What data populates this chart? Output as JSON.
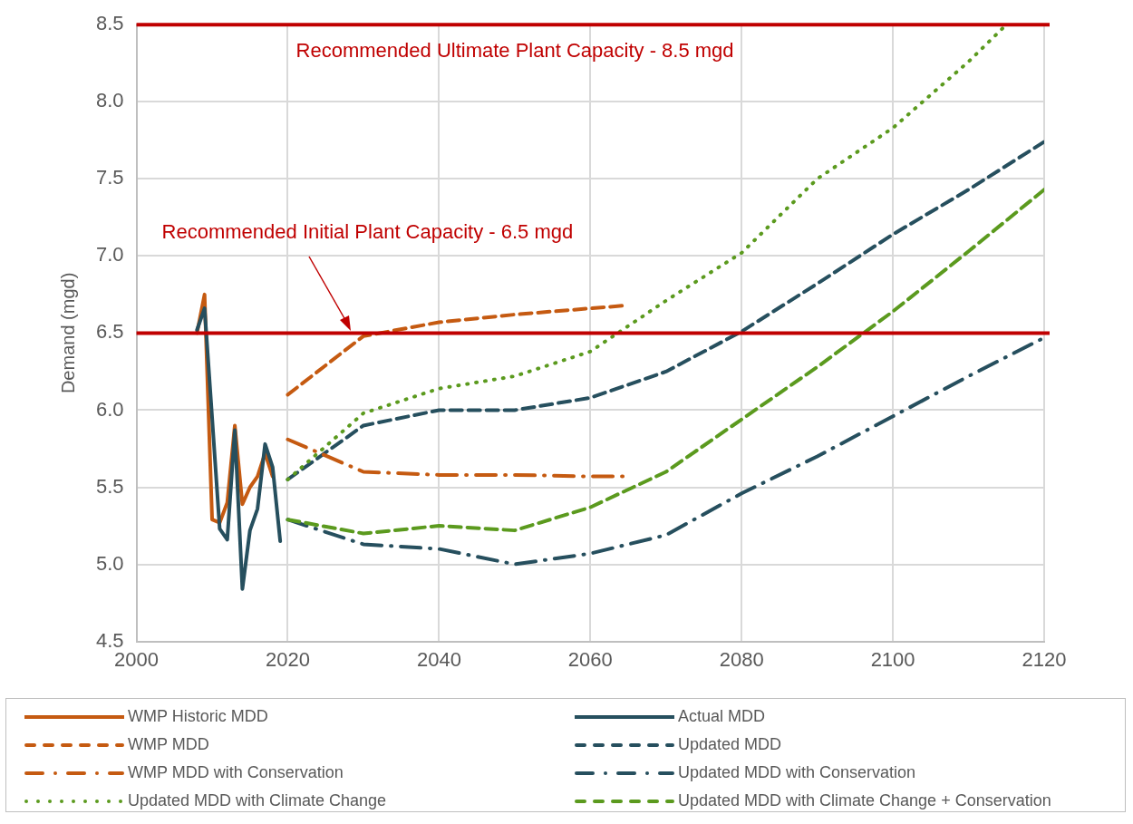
{
  "chart_data": {
    "type": "line",
    "ylabel": "Demand (mgd)",
    "xlim": [
      2000,
      2120
    ],
    "xticks": [
      2000,
      2020,
      2040,
      2060,
      2080,
      2100,
      2120
    ],
    "ylim": [
      4.5,
      8.5
    ],
    "yticks": [
      {
        "value": 4.5,
        "label": "4.5"
      },
      {
        "value": 5,
        "label": "5.0"
      },
      {
        "value": 5.5,
        "label": "5.5"
      },
      {
        "value": 6,
        "label": "6.0"
      },
      {
        "value": 6.5,
        "label": "6.5"
      },
      {
        "value": 7,
        "label": "7.0"
      },
      {
        "value": 7.5,
        "label": "7.5"
      },
      {
        "value": 8,
        "label": "8.0"
      },
      {
        "value": 8.5,
        "label": "8.5"
      }
    ],
    "grid": true,
    "legend": "bottom",
    "marker": "none",
    "ref_lines": [
      {
        "axis": "y",
        "value": 8.5,
        "label": "Recommended Ultimate Plant Capacity - 8.5 mgd",
        "color": "#c00000"
      },
      {
        "axis": "y",
        "value": 6.5,
        "label": "Recommended Initial Plant Capacity - 6.5 mgd",
        "color": "#c00000"
      }
    ],
    "series": [
      {
        "name": "WMP Historic MDD",
        "color": "#c55a11",
        "line_style": "solid",
        "x": [
          2008,
          2009,
          2010,
          2011,
          2012,
          2013,
          2014,
          2015,
          2016,
          2017,
          2018
        ],
        "values": [
          6.5,
          6.75,
          5.29,
          5.27,
          5.4,
          5.9,
          5.39,
          5.5,
          5.57,
          5.72,
          5.57
        ]
      },
      {
        "name": "Actual MDD",
        "color": "#264f5e",
        "line_style": "solid",
        "x": [
          2008,
          2009,
          2010,
          2011,
          2012,
          2013,
          2014,
          2015,
          2016,
          2017,
          2018,
          2019
        ],
        "values": [
          6.52,
          6.66,
          5.95,
          5.23,
          5.16,
          5.87,
          4.84,
          5.22,
          5.36,
          5.78,
          5.63,
          5.15
        ]
      },
      {
        "name": "WMP MDD",
        "color": "#c55a11",
        "line_style": "dashed",
        "x": [
          2020,
          2030,
          2040,
          2050,
          2060,
          2065
        ],
        "values": [
          6.1,
          6.48,
          6.57,
          6.62,
          6.66,
          6.68
        ]
      },
      {
        "name": "Updated MDD",
        "color": "#264f5e",
        "line_style": "dashed",
        "x": [
          2020,
          2030,
          2040,
          2050,
          2060,
          2070,
          2080,
          2090,
          2100,
          2110,
          2120
        ],
        "values": [
          5.55,
          5.9,
          6.0,
          6.0,
          6.08,
          6.25,
          6.51,
          6.82,
          7.14,
          7.43,
          7.74
        ]
      },
      {
        "name": "WMP MDD with Conservation",
        "color": "#c55a11",
        "line_style": "dashdot",
        "x": [
          2020,
          2030,
          2040,
          2050,
          2060,
          2065
        ],
        "values": [
          5.81,
          5.6,
          5.58,
          5.58,
          5.57,
          5.57
        ]
      },
      {
        "name": "Updated MDD with Conservation",
        "color": "#264f5e",
        "line_style": "dashdot",
        "x": [
          2020,
          2030,
          2040,
          2050,
          2060,
          2070,
          2080,
          2090,
          2100,
          2110,
          2120
        ],
        "values": [
          5.29,
          5.13,
          5.1,
          5.0,
          5.07,
          5.19,
          5.46,
          5.7,
          5.96,
          6.22,
          6.47
        ]
      },
      {
        "name": "Updated MDD with Climate Change",
        "color": "#5b9a1e",
        "line_style": "dotted",
        "x": [
          2020,
          2030,
          2040,
          2050,
          2060,
          2070,
          2080,
          2090,
          2100,
          2110,
          2115
        ],
        "values": [
          5.55,
          5.98,
          6.14,
          6.22,
          6.38,
          6.71,
          7.02,
          7.5,
          7.83,
          8.26,
          8.5
        ]
      },
      {
        "name": "Updated MDD with Climate Change + Conservation",
        "color": "#5b9a1e",
        "line_style": "dashed",
        "x": [
          2020,
          2030,
          2040,
          2050,
          2060,
          2070,
          2080,
          2090,
          2100,
          2110,
          2120
        ],
        "values": [
          5.29,
          5.2,
          5.25,
          5.22,
          5.37,
          5.6,
          5.94,
          6.28,
          6.64,
          7.03,
          7.43
        ]
      }
    ]
  }
}
